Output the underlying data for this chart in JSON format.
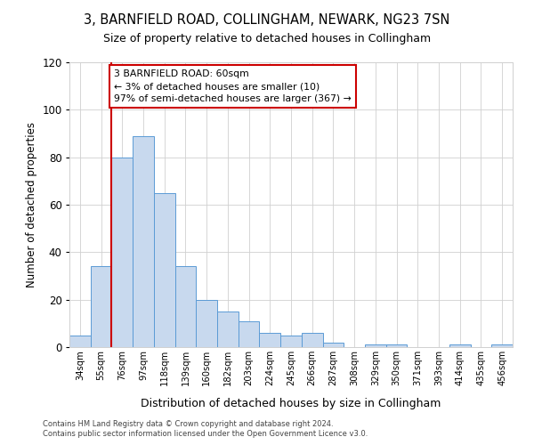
{
  "title": "3, BARNFIELD ROAD, COLLINGHAM, NEWARK, NG23 7SN",
  "subtitle": "Size of property relative to detached houses in Collingham",
  "xlabel": "Distribution of detached houses by size in Collingham",
  "ylabel": "Number of detached properties",
  "categories": [
    "34sqm",
    "55sqm",
    "76sqm",
    "97sqm",
    "118sqm",
    "139sqm",
    "160sqm",
    "182sqm",
    "203sqm",
    "224sqm",
    "245sqm",
    "266sqm",
    "287sqm",
    "308sqm",
    "329sqm",
    "350sqm",
    "371sqm",
    "393sqm",
    "414sqm",
    "435sqm",
    "456sqm"
  ],
  "values": [
    5,
    34,
    80,
    89,
    65,
    34,
    20,
    15,
    11,
    6,
    5,
    6,
    2,
    0,
    1,
    1,
    0,
    0,
    1,
    0,
    1
  ],
  "bar_color": "#c8d9ee",
  "bar_edge_color": "#5b9bd5",
  "vline_x": 1.5,
  "vline_color": "#cc0000",
  "annotation_text": "3 BARNFIELD ROAD: 60sqm\n← 3% of detached houses are smaller (10)\n97% of semi-detached houses are larger (367) →",
  "annotation_box_color": "#ffffff",
  "annotation_box_edge_color": "#cc0000",
  "ylim": [
    0,
    120
  ],
  "yticks": [
    0,
    20,
    40,
    60,
    80,
    100,
    120
  ],
  "background_color": "#ffffff",
  "grid_color": "#d0d0d0",
  "footnote1": "Contains HM Land Registry data © Crown copyright and database right 2024.",
  "footnote2": "Contains public sector information licensed under the Open Government Licence v3.0."
}
